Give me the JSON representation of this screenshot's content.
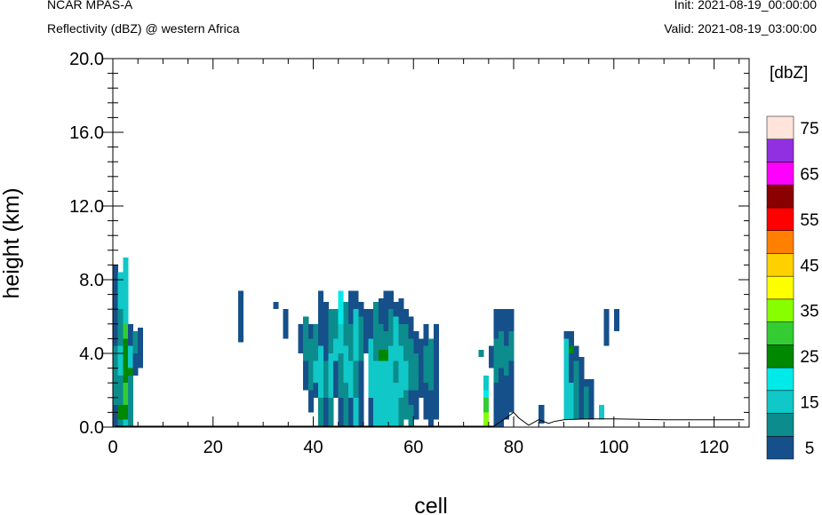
{
  "header": {
    "model": "NCAR MPAS-A",
    "field": "Reflectivity (dBZ) @ western Africa",
    "init": "Init: 2021-08-19_00:00:00",
    "valid": "Valid: 2021-08-19_03:00:00"
  },
  "chart_data": {
    "type": "heatmap",
    "xlabel": "cell",
    "ylabel": "height (km)",
    "xlim": [
      0,
      127
    ],
    "ylim": [
      0,
      20
    ],
    "x_ticks": [
      "0",
      "20",
      "40",
      "60",
      "80",
      "100",
      "120"
    ],
    "y_ticks": [
      "0.0",
      "4.0",
      "8.0",
      "12.0",
      "16.0",
      "20.0"
    ],
    "colorbar": {
      "unit": "[dbZ]",
      "levels": [
        0,
        5,
        10,
        15,
        20,
        25,
        30,
        35,
        40,
        45,
        50,
        55,
        60,
        65,
        70,
        75,
        80
      ],
      "labels": [
        "5",
        "15",
        "25",
        "35",
        "45",
        "55",
        "65",
        "75"
      ],
      "colors": [
        "#16508a",
        "#0c8c8c",
        "#10c8c8",
        "#00eaea",
        "#008800",
        "#33cc33",
        "#88ff00",
        "#ffff00",
        "#ffd000",
        "#ff8000",
        "#ff0000",
        "#8b0000",
        "#ff00ff",
        "#9030e0",
        "#ffe4dc"
      ]
    },
    "cell_size": {
      "dx": 1,
      "dz": 0.4
    },
    "columns": [
      {
        "x": 0,
        "bins": [
          [
            0,
            1.2,
            0
          ],
          [
            1.2,
            4.4,
            1
          ],
          [
            4.4,
            8.8,
            0
          ]
        ]
      },
      {
        "x": 1,
        "bins": [
          [
            0,
            0.4,
            1
          ],
          [
            0.4,
            1.2,
            4
          ],
          [
            1.2,
            2.8,
            1
          ],
          [
            2.8,
            4.4,
            2
          ],
          [
            4.4,
            6.4,
            1
          ],
          [
            6.4,
            8.4,
            2
          ]
        ]
      },
      {
        "x": 2,
        "bins": [
          [
            0,
            0.4,
            2
          ],
          [
            0.4,
            1.2,
            4
          ],
          [
            1.2,
            2.4,
            5
          ],
          [
            2.4,
            4.8,
            4
          ],
          [
            4.8,
            5.6,
            5
          ],
          [
            5.6,
            9.2,
            2
          ]
        ]
      },
      {
        "x": 3,
        "bins": [
          [
            0,
            2.8,
            1
          ],
          [
            2.8,
            3.2,
            4
          ],
          [
            3.2,
            4.4,
            2
          ],
          [
            4.4,
            5.6,
            0
          ]
        ]
      },
      {
        "x": 4,
        "bins": [
          [
            2.8,
            4.0,
            0
          ],
          [
            4.0,
            5.2,
            1
          ]
        ]
      },
      {
        "x": 5,
        "bins": [
          [
            3.2,
            5.4,
            0
          ]
        ]
      },
      {
        "x": 25,
        "bins": [
          [
            4.6,
            7.4,
            0
          ]
        ]
      },
      {
        "x": 32,
        "bins": [
          [
            6.4,
            6.8,
            0
          ]
        ]
      },
      {
        "x": 34,
        "bins": [
          [
            4.8,
            6.4,
            0
          ]
        ]
      },
      {
        "x": 37,
        "bins": [
          [
            4.0,
            5.6,
            0
          ]
        ]
      },
      {
        "x": 38,
        "bins": [
          [
            2.0,
            3.6,
            0
          ],
          [
            3.6,
            6.0,
            1
          ]
        ]
      },
      {
        "x": 39,
        "bins": [
          [
            0.8,
            2.0,
            0
          ],
          [
            2.0,
            4.8,
            1
          ],
          [
            4.8,
            5.6,
            0
          ]
        ]
      },
      {
        "x": 40,
        "bins": [
          [
            1.6,
            2.4,
            0
          ],
          [
            2.4,
            3.6,
            2
          ],
          [
            3.6,
            5.6,
            1
          ]
        ]
      },
      {
        "x": 41,
        "bins": [
          [
            0,
            1.6,
            1
          ],
          [
            1.6,
            4.4,
            2
          ],
          [
            4.4,
            7.4,
            0
          ]
        ]
      },
      {
        "x": 42,
        "bins": [
          [
            0,
            1.6,
            0
          ],
          [
            1.6,
            3.6,
            1
          ],
          [
            3.6,
            6.8,
            0
          ]
        ]
      },
      {
        "x": 43,
        "bins": [
          [
            0,
            1.6,
            1
          ],
          [
            1.6,
            4.0,
            2
          ],
          [
            4.0,
            6.4,
            1
          ]
        ]
      },
      {
        "x": 44,
        "bins": [
          [
            1.6,
            3.6,
            0
          ],
          [
            3.6,
            4.8,
            2
          ],
          [
            4.8,
            6.4,
            1
          ]
        ]
      },
      {
        "x": 45,
        "bins": [
          [
            0,
            1.6,
            0
          ],
          [
            1.6,
            4.0,
            1
          ],
          [
            4.0,
            5.6,
            2
          ],
          [
            5.6,
            7.4,
            3
          ]
        ]
      },
      {
        "x": 46,
        "bins": [
          [
            0,
            2.4,
            1
          ],
          [
            2.4,
            4.4,
            2
          ],
          [
            4.4,
            6.8,
            1
          ]
        ]
      },
      {
        "x": 47,
        "bins": [
          [
            0,
            1.6,
            0
          ],
          [
            1.6,
            3.6,
            2
          ],
          [
            3.6,
            5.6,
            1
          ],
          [
            5.6,
            7.4,
            0
          ]
        ]
      },
      {
        "x": 48,
        "bins": [
          [
            0,
            1.6,
            2
          ],
          [
            1.6,
            3.6,
            1
          ],
          [
            3.6,
            6.4,
            2
          ],
          [
            6.4,
            7.4,
            0
          ]
        ]
      },
      {
        "x": 49,
        "bins": [
          [
            0,
            3.6,
            0
          ],
          [
            3.6,
            6.0,
            1
          ],
          [
            6.0,
            6.8,
            0
          ]
        ]
      },
      {
        "x": 50,
        "bins": [
          [
            4.0,
            6.4,
            0
          ]
        ]
      },
      {
        "x": 51,
        "bins": [
          [
            0,
            1.6,
            0
          ],
          [
            1.6,
            4.8,
            2
          ],
          [
            4.8,
            6.4,
            0
          ]
        ]
      },
      {
        "x": 52,
        "bins": [
          [
            0,
            3.6,
            2
          ],
          [
            3.6,
            4.4,
            1
          ],
          [
            4.4,
            6.8,
            1
          ]
        ]
      },
      {
        "x": 53,
        "bins": [
          [
            0,
            3.6,
            2
          ],
          [
            3.6,
            4.2,
            4
          ],
          [
            4.2,
            5.6,
            1
          ],
          [
            5.6,
            7.0,
            0
          ]
        ]
      },
      {
        "x": 54,
        "bins": [
          [
            0,
            3.6,
            2
          ],
          [
            3.6,
            4.2,
            4
          ],
          [
            4.2,
            5.2,
            1
          ],
          [
            5.2,
            7.4,
            0
          ]
        ]
      },
      {
        "x": 55,
        "bins": [
          [
            0,
            4.4,
            2
          ],
          [
            4.4,
            6.4,
            1
          ],
          [
            6.4,
            7.4,
            0
          ]
        ]
      },
      {
        "x": 56,
        "bins": [
          [
            0,
            2.4,
            2
          ],
          [
            2.4,
            3.6,
            1
          ],
          [
            3.6,
            6.0,
            2
          ],
          [
            6.0,
            6.8,
            0
          ]
        ]
      },
      {
        "x": 57,
        "bins": [
          [
            0,
            1.6,
            1
          ],
          [
            1.6,
            4.4,
            2
          ],
          [
            4.4,
            5.6,
            1
          ],
          [
            5.6,
            7.0,
            0
          ]
        ]
      },
      {
        "x": 58,
        "bins": [
          [
            0.4,
            2.0,
            1
          ],
          [
            2.0,
            3.6,
            2
          ],
          [
            3.6,
            5.6,
            1
          ],
          [
            5.6,
            6.4,
            0
          ]
        ]
      },
      {
        "x": 59,
        "bins": [
          [
            0,
            1.2,
            1
          ],
          [
            1.2,
            2.0,
            0
          ],
          [
            2.0,
            4.8,
            1
          ],
          [
            4.8,
            6.0,
            0
          ]
        ]
      },
      {
        "x": 60,
        "bins": [
          [
            0.4,
            2.0,
            0
          ],
          [
            2.0,
            4.0,
            1
          ],
          [
            4.0,
            5.2,
            0
          ]
        ]
      },
      {
        "x": 61,
        "bins": [
          [
            1.6,
            4.8,
            0
          ]
        ]
      },
      {
        "x": 62,
        "bins": [
          [
            0.4,
            2.4,
            0
          ],
          [
            2.4,
            4.4,
            1
          ],
          [
            4.4,
            5.6,
            0
          ]
        ]
      },
      {
        "x": 63,
        "bins": [
          [
            0,
            2.0,
            0
          ],
          [
            2.0,
            4.8,
            1
          ]
        ]
      },
      {
        "x": 64,
        "bins": [
          [
            0.4,
            2.0,
            0
          ],
          [
            2.0,
            5.6,
            0
          ]
        ]
      },
      {
        "x": 73,
        "bins": [
          [
            3.8,
            4.2,
            1
          ]
        ]
      },
      {
        "x": 74,
        "bins": [
          [
            0,
            0.8,
            6
          ],
          [
            0.8,
            1.6,
            5
          ],
          [
            1.6,
            2.0,
            3
          ],
          [
            2.0,
            2.8,
            2
          ]
        ]
      },
      {
        "x": 75,
        "bins": [
          [
            3.2,
            4.4,
            0
          ]
        ]
      },
      {
        "x": 76,
        "bins": [
          [
            0,
            2.4,
            0
          ],
          [
            2.4,
            4.8,
            1
          ],
          [
            4.8,
            6.4,
            0
          ]
        ]
      },
      {
        "x": 77,
        "bins": [
          [
            0,
            3.2,
            0
          ],
          [
            3.2,
            5.2,
            1
          ],
          [
            5.2,
            6.4,
            0
          ]
        ]
      },
      {
        "x": 78,
        "bins": [
          [
            0.4,
            2.8,
            0
          ],
          [
            2.8,
            4.4,
            1
          ],
          [
            4.4,
            6.4,
            0
          ]
        ]
      },
      {
        "x": 79,
        "bins": [
          [
            0.8,
            3.6,
            0
          ],
          [
            3.6,
            5.2,
            1
          ],
          [
            5.2,
            6.4,
            0
          ]
        ]
      },
      {
        "x": 85,
        "bins": [
          [
            0.2,
            1.2,
            0
          ]
        ]
      },
      {
        "x": 90,
        "bins": [
          [
            0.4,
            4.8,
            2
          ],
          [
            4.8,
            5.2,
            0
          ]
        ]
      },
      {
        "x": 91,
        "bins": [
          [
            0.4,
            2.4,
            2
          ],
          [
            2.4,
            4.0,
            0
          ],
          [
            4.0,
            4.4,
            4
          ],
          [
            4.4,
            5.2,
            0
          ]
        ]
      },
      {
        "x": 92,
        "bins": [
          [
            0.4,
            3.6,
            1
          ],
          [
            3.6,
            4.4,
            0
          ]
        ]
      },
      {
        "x": 93,
        "bins": [
          [
            0.4,
            2.8,
            0
          ],
          [
            2.8,
            3.8,
            0
          ]
        ]
      },
      {
        "x": 94,
        "bins": [
          [
            0.4,
            2.2,
            1
          ],
          [
            2.2,
            2.6,
            0
          ]
        ]
      },
      {
        "x": 95,
        "bins": [
          [
            0.4,
            2.6,
            0
          ]
        ]
      },
      {
        "x": 97,
        "bins": [
          [
            0.4,
            1.2,
            2
          ]
        ]
      },
      {
        "x": 98,
        "bins": [
          [
            4.4,
            6.4,
            0
          ]
        ]
      },
      {
        "x": 100,
        "bins": [
          [
            5.2,
            6.4,
            0
          ]
        ]
      }
    ]
  }
}
